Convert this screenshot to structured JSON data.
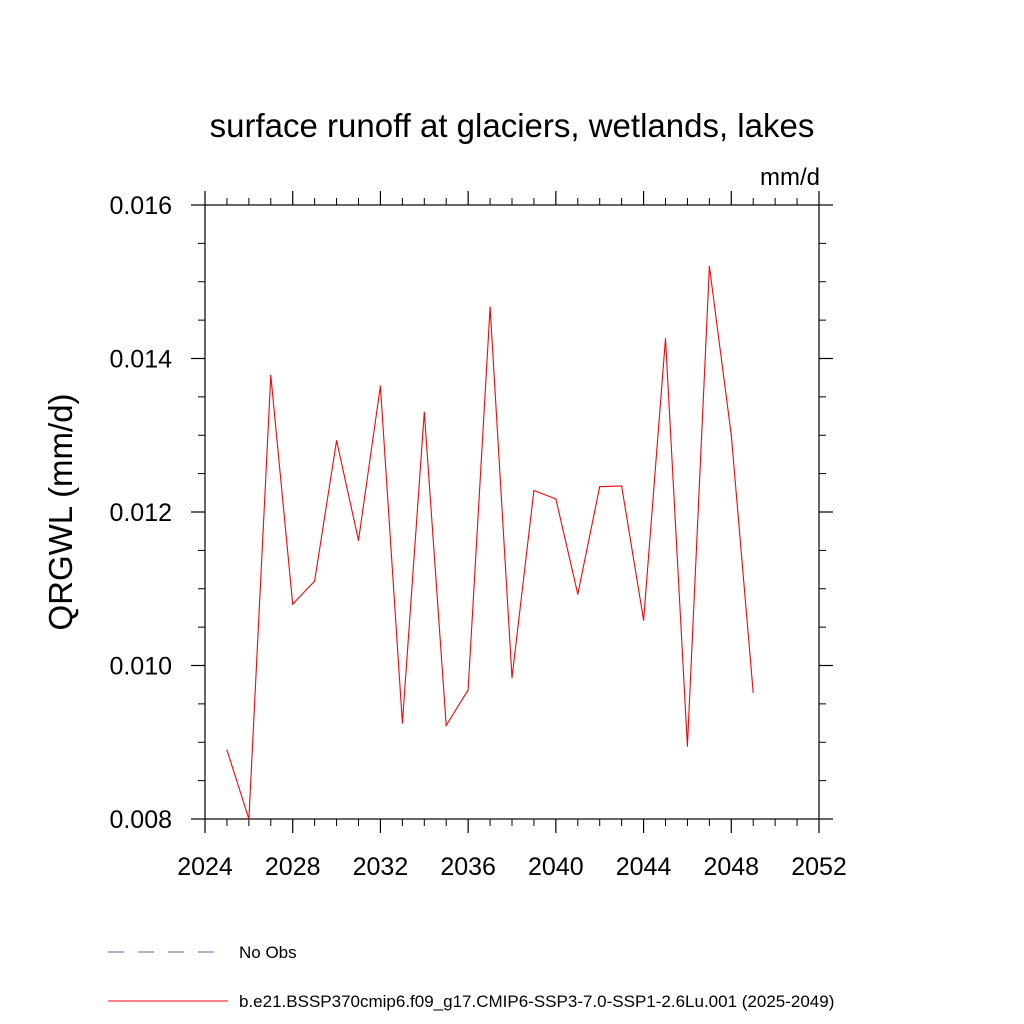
{
  "chart_data": {
    "type": "line",
    "title": "surface runoff at glaciers, wetlands, lakes",
    "units": "mm/d",
    "ylabel": "QRGWL  (mm/d)",
    "xlabel": "",
    "xlim": [
      2024,
      2052
    ],
    "ylim": [
      0.008,
      0.016
    ],
    "x_ticks": [
      "2024",
      "2028",
      "2032",
      "2036",
      "2040",
      "2044",
      "2048",
      "2052"
    ],
    "y_ticks": [
      "0.008",
      "0.010",
      "0.012",
      "0.014",
      "0.016"
    ],
    "series": [
      {
        "name": "b.e21.BSSP370cmip6.f09_g17.CMIP6-SSP3-7.0-SSP1-2.6Lu.001 (2025-2049)",
        "color": "#ff0000",
        "x": [
          2025,
          2026,
          2027,
          2028,
          2029,
          2030,
          2031,
          2032,
          2033,
          2034,
          2035,
          2036,
          2037,
          2038,
          2039,
          2040,
          2041,
          2042,
          2043,
          2044,
          2045,
          2046,
          2047,
          2048,
          2049
        ],
        "values": [
          0.0089,
          0.008,
          0.01378,
          0.0108,
          0.0111,
          0.01293,
          0.01163,
          0.01364,
          0.00925,
          0.0133,
          0.00922,
          0.00968,
          0.01467,
          0.00984,
          0.01228,
          0.01217,
          0.01093,
          0.01233,
          0.01234,
          0.01059,
          0.01426,
          0.00895,
          0.0152,
          0.013,
          0.00965
        ]
      }
    ],
    "legend": {
      "placement": "bottom",
      "entries": [
        {
          "label": "No Obs",
          "color": "#6b5fa8",
          "dash": "dashed"
        },
        {
          "label": "b.e21.BSSP370cmip6.f09_g17.CMIP6-SSP3-7.0-SSP1-2.6Lu.001 (2025-2049)",
          "color": "#ff0000",
          "dash": "solid"
        }
      ]
    },
    "grid": false
  }
}
